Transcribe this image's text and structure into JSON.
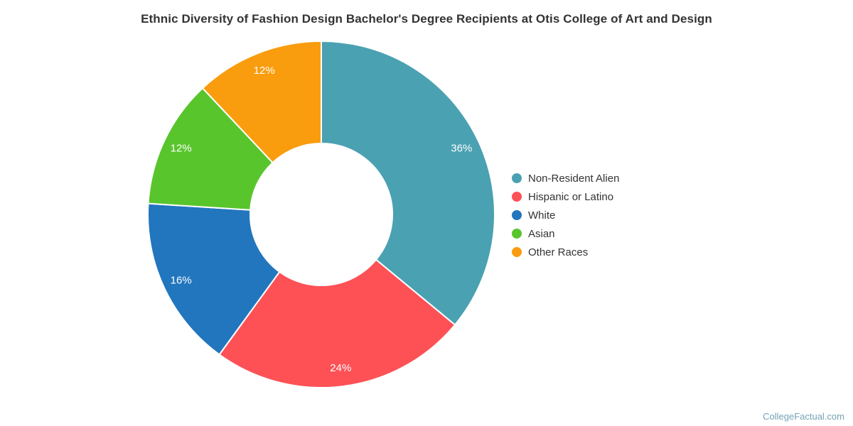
{
  "title": "Ethnic Diversity of Fashion Design Bachelor's Degree Recipients at Otis College of Art and Design",
  "watermark": "CollegeFactual.com",
  "chart_data": {
    "type": "pie",
    "title": "Ethnic Diversity of Fashion Design Bachelor's Degree Recipients at Otis College of Art and Design",
    "donut": true,
    "inner_radius_ratio": 0.41,
    "start_angle_deg": 0,
    "direction": "clockwise",
    "legend_position": "right",
    "value_label_color": "#ffffff",
    "background_color": "#ffffff",
    "slices": [
      {
        "label": "Non-Resident Alien",
        "value": 36,
        "display": "36%",
        "color": "#4AA1B2"
      },
      {
        "label": "Hispanic or Latino",
        "value": 24,
        "display": "24%",
        "color": "#FD5156"
      },
      {
        "label": "White",
        "value": 16,
        "display": "16%",
        "color": "#2176BE"
      },
      {
        "label": "Asian",
        "value": 12,
        "display": "12%",
        "color": "#58C52C"
      },
      {
        "label": "Other Races",
        "value": 12,
        "display": "12%",
        "color": "#F99D0E"
      }
    ]
  }
}
